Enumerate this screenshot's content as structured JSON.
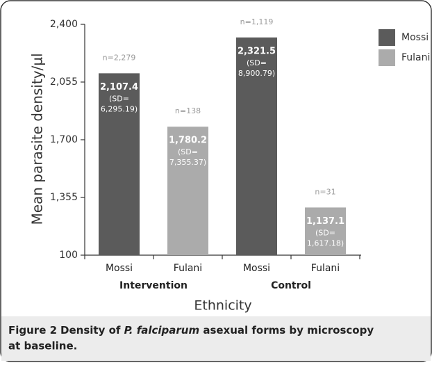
{
  "chart_data": {
    "type": "bar",
    "ylabel": "Mean parasite density/µl",
    "xlabel": "Ethnicity",
    "categories": [
      "Intervention",
      "Control"
    ],
    "series": [
      {
        "name": "Mossi",
        "color": "#5b5b5b",
        "values": [
          2107.4,
          2321.5
        ],
        "value_labels": [
          "2,107.4",
          "2,321.5"
        ],
        "sd_labels": [
          [
            "(SD=",
            "6,295.19)"
          ],
          [
            "(SD=",
            "8,900.79)"
          ]
        ],
        "n_labels": [
          "n=2,279",
          "n=1,119"
        ]
      },
      {
        "name": "Fulani",
        "color": "#ababab",
        "values": [
          1780.2,
          1137.1
        ],
        "value_labels": [
          "1,780.2",
          "1,137.1"
        ],
        "sd_labels": [
          [
            "(SD=",
            "7,355.37)"
          ],
          [
            "(SD=",
            "1,617.18)"
          ]
        ],
        "n_labels": [
          "n=138",
          "n=31"
        ]
      }
    ],
    "ylim": [
      100,
      2400
    ],
    "yticks": [
      {
        "value": 100,
        "label": "100"
      },
      {
        "value": 1355,
        "label": "1,355"
      },
      {
        "value": 1700,
        "label": "1,700"
      },
      {
        "value": 2055,
        "label": "2,055"
      },
      {
        "value": 2400,
        "label": "2,400"
      }
    ],
    "legend": "top-right"
  },
  "caption": {
    "label": "Figure 2",
    "parts": [
      "Density of ",
      "P. falciparum",
      " asexual forms by microscopy at baseline."
    ]
  }
}
